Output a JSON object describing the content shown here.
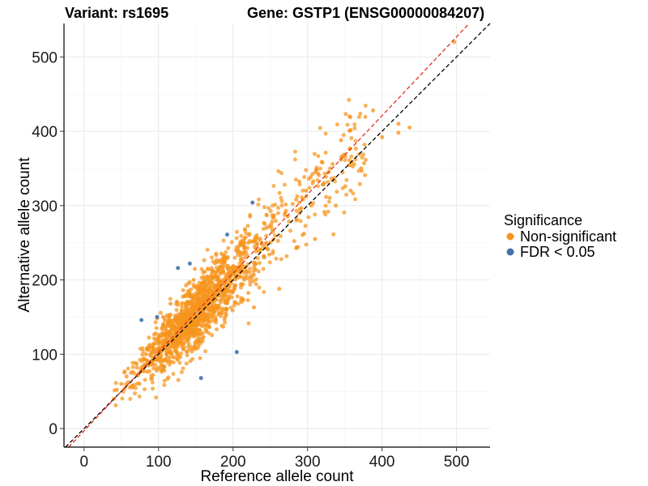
{
  "header": {
    "variant_label": "Variant: rs1695",
    "gene_label": "Gene: GSTP1 (ENSG00000084207)"
  },
  "chart_data": {
    "type": "scatter",
    "xlabel": "Reference allele count",
    "ylabel": "Alternative allele count",
    "xlim": [
      -27,
      545
    ],
    "ylim": [
      -25,
      545
    ],
    "x_ticks": [
      0,
      100,
      200,
      300,
      400,
      500
    ],
    "y_ticks": [
      0,
      100,
      200,
      300,
      400,
      500
    ],
    "grid": true,
    "legend": {
      "title": "Significance",
      "position": "right",
      "entries": [
        {
          "label": "Non-significant",
          "color": "#F7941D"
        },
        {
          "label": "FDR < 0.05",
          "color": "#4472A8"
        }
      ]
    },
    "reference_lines": [
      {
        "slope": 1.0,
        "intercept": 0,
        "style": "dashed",
        "color": "#000000"
      },
      {
        "slope": 1.06,
        "intercept": -3,
        "style": "dashed",
        "color": "#E0301E"
      }
    ],
    "series": [
      {
        "name": "Non-significant",
        "color": "#F7941D",
        "cloud": {
          "count": 1500,
          "center": [
            150,
            155
          ],
          "range_x": [
            40,
            500
          ]
        },
        "points": [
          [
            497,
            520
          ],
          [
            388,
            428
          ],
          [
            437,
            405
          ],
          [
            422,
            410
          ],
          [
            422,
            398
          ],
          [
            400,
            392
          ],
          [
            376,
            357
          ],
          [
            345,
            388
          ],
          [
            320,
            358
          ],
          [
            328,
            345
          ],
          [
            312,
            348
          ],
          [
            298,
            320
          ],
          [
            305,
            300
          ],
          [
            290,
            295
          ],
          [
            285,
            280
          ],
          [
            270,
            290
          ],
          [
            255,
            287
          ],
          [
            245,
            270
          ],
          [
            245,
            250
          ],
          [
            232,
            248
          ],
          [
            222,
            262
          ],
          [
            215,
            245
          ],
          [
            204,
            240
          ],
          [
            190,
            230
          ],
          [
            172,
            212
          ],
          [
            160,
            210
          ],
          [
            147,
            200
          ],
          [
            137,
            180
          ],
          [
            125,
            170
          ],
          [
            116,
            168
          ],
          [
            106,
            150
          ],
          [
            96,
            128
          ],
          [
            83,
            100
          ],
          [
            71,
            82
          ],
          [
            63,
            75
          ],
          [
            57,
            70
          ],
          [
            50,
            60
          ],
          [
            44,
            52
          ],
          [
            40,
            40
          ],
          [
            228,
            163
          ],
          [
            262,
            188
          ],
          [
            310,
            255
          ],
          [
            338,
            300
          ],
          [
            358,
            320
          ],
          [
            372,
            350
          ]
        ]
      },
      {
        "name": "FDR < 0.05",
        "color": "#4472A8",
        "points": [
          [
            226,
            304
          ],
          [
            192,
            261
          ],
          [
            142,
            222
          ],
          [
            126,
            216
          ],
          [
            77,
            146
          ],
          [
            98,
            150
          ],
          [
            205,
            103
          ],
          [
            157,
            68
          ]
        ]
      }
    ]
  }
}
